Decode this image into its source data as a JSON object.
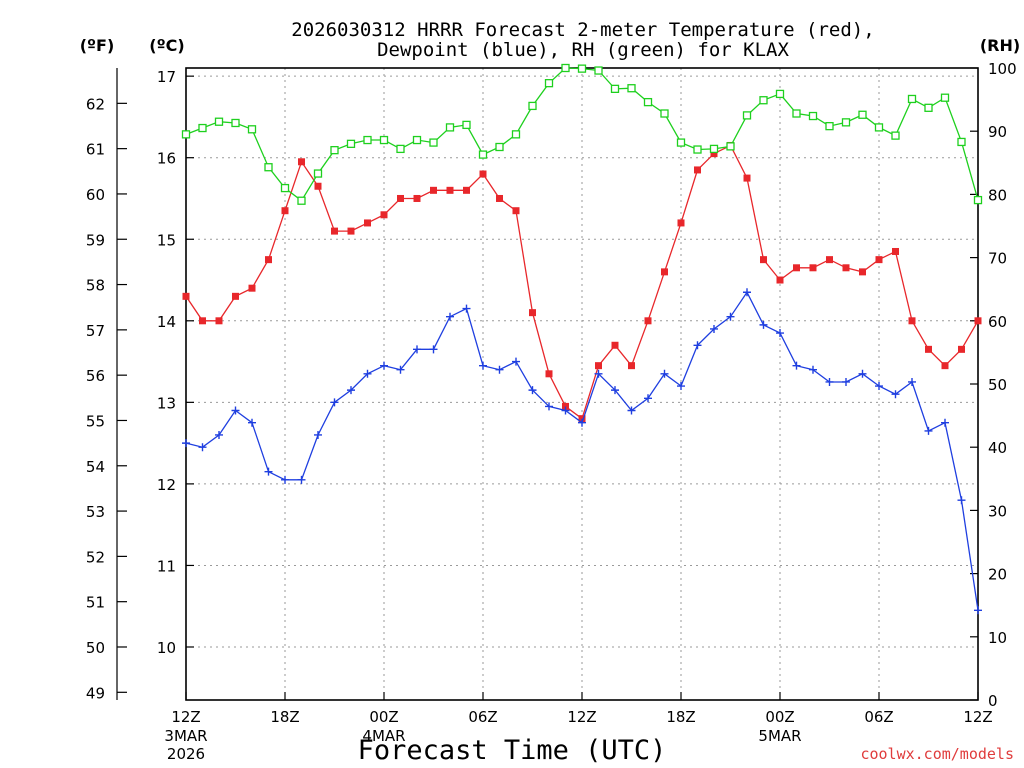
{
  "chart_data": {
    "type": "line",
    "title_line1": "2026030312 HRRR Forecast 2-meter Temperature (red),",
    "title_line2": "Dewpoint (blue), RH (green) for KLAX",
    "unit_f": "(ºF)",
    "unit_c": "(ºC)",
    "unit_rh": "(RH)",
    "xlabel": "Forecast Time (UTC)",
    "watermark": "coolwx.com/models",
    "x_ticks": [
      {
        "hour": 0,
        "label": "12Z",
        "date": "3MAR",
        "year": "2026"
      },
      {
        "hour": 6,
        "label": "18Z"
      },
      {
        "hour": 12,
        "label": "00Z",
        "date": "4MAR"
      },
      {
        "hour": 18,
        "label": "06Z"
      },
      {
        "hour": 24,
        "label": "12Z"
      },
      {
        "hour": 30,
        "label": "18Z"
      },
      {
        "hour": 36,
        "label": "00Z",
        "date": "5MAR"
      },
      {
        "hour": 42,
        "label": "06Z"
      },
      {
        "hour": 48,
        "label": "12Z"
      }
    ],
    "xlim": [
      0,
      48
    ],
    "ylim_c": [
      9.35,
      17.1
    ],
    "ylim_rh": [
      0,
      100
    ],
    "yticks_c": [
      10,
      11,
      12,
      13,
      14,
      15,
      16,
      17
    ],
    "yticks_f": [
      49,
      50,
      51,
      52,
      53,
      54,
      55,
      56,
      57,
      58,
      59,
      60,
      61,
      62
    ],
    "yticks_rh": [
      0,
      10,
      20,
      30,
      40,
      50,
      60,
      70,
      80,
      90,
      100
    ],
    "grid": true,
    "colors": {
      "temperature": "#e8272b",
      "dewpoint": "#1f3fe0",
      "rh": "#1ed01e"
    },
    "series": [
      {
        "name": "Temperature",
        "axis": "C",
        "marker": "filled-square",
        "color": "#e8272b",
        "values": [
          14.3,
          14.0,
          14.0,
          14.3,
          14.4,
          14.75,
          15.35,
          15.95,
          15.65,
          15.1,
          15.1,
          15.2,
          15.3,
          15.5,
          15.5,
          15.6,
          15.6,
          15.6,
          15.8,
          15.5,
          15.35,
          14.1,
          13.35,
          12.95,
          12.8,
          13.45,
          13.7,
          13.45,
          14.0,
          14.6,
          15.2,
          15.85,
          16.05,
          16.15,
          15.75,
          14.75,
          14.5,
          14.65,
          14.65,
          14.75,
          14.65,
          14.6,
          14.75,
          14.85,
          14.0,
          13.65,
          13.45,
          13.65,
          14.0
        ]
      },
      {
        "name": "Dewpoint",
        "axis": "C",
        "marker": "plus",
        "color": "#1f3fe0",
        "values": [
          12.5,
          12.45,
          12.6,
          12.9,
          12.75,
          12.15,
          12.05,
          12.05,
          12.6,
          13.0,
          13.15,
          13.35,
          13.45,
          13.4,
          13.65,
          13.65,
          14.05,
          14.15,
          13.45,
          13.4,
          13.5,
          13.15,
          12.95,
          12.9,
          12.75,
          13.35,
          13.15,
          12.9,
          13.05,
          13.35,
          13.2,
          13.7,
          13.9,
          14.05,
          14.35,
          13.95,
          13.85,
          13.45,
          13.4,
          13.25,
          13.25,
          13.35,
          13.2,
          13.1,
          13.25,
          12.65,
          12.75,
          11.8,
          10.45
        ]
      },
      {
        "name": "RH",
        "axis": "RH",
        "marker": "open-square",
        "color": "#1ed01e",
        "values": [
          89.5,
          90.5,
          91.5,
          91.3,
          90.3,
          84.3,
          81.0,
          79.0,
          83.3,
          87.0,
          88.0,
          88.6,
          88.6,
          87.2,
          88.6,
          88.2,
          90.6,
          91.0,
          86.3,
          87.5,
          89.5,
          94.0,
          97.6,
          100.0,
          99.9,
          99.6,
          96.7,
          96.8,
          94.6,
          92.8,
          88.2,
          87.1,
          87.2,
          87.6,
          92.5,
          94.9,
          95.9,
          92.8,
          92.4,
          90.8,
          91.4,
          92.6,
          90.6,
          89.3,
          95.1,
          93.7,
          95.3,
          88.3,
          79.1
        ]
      }
    ]
  }
}
